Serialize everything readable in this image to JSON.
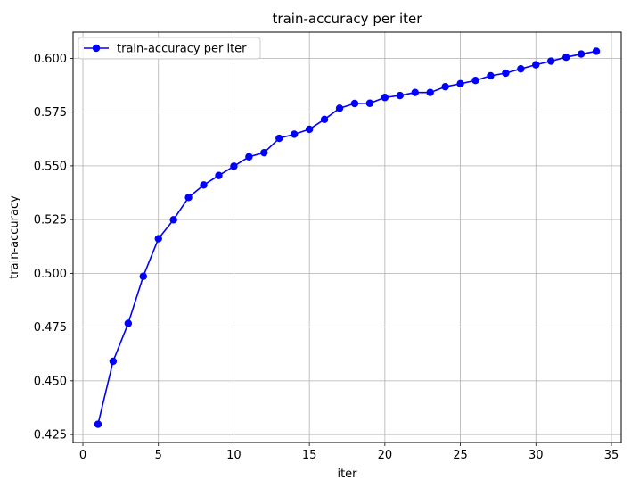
{
  "chart_data": {
    "type": "line",
    "title": "train-accuracy per iter",
    "xlabel": "iter",
    "ylabel": "train-accuracy",
    "xlim": [
      -0.65,
      35.65
    ],
    "ylim": [
      0.4213,
      0.6122
    ],
    "xticks": [
      0,
      5,
      10,
      15,
      20,
      25,
      30,
      35
    ],
    "yticks": [
      0.425,
      0.45,
      0.475,
      0.5,
      0.525,
      0.55,
      0.575,
      0.6
    ],
    "ytick_labels": [
      "0.425",
      "0.450",
      "0.475",
      "0.500",
      "0.525",
      "0.550",
      "0.575",
      "0.600"
    ],
    "grid": true,
    "legend_position": "top-left",
    "series": [
      {
        "name": "train-accuracy per iter",
        "color": "#0000ff",
        "marker": "circle",
        "x": [
          1,
          2,
          3,
          4,
          5,
          6,
          7,
          8,
          9,
          10,
          11,
          12,
          13,
          14,
          15,
          16,
          17,
          18,
          19,
          20,
          21,
          22,
          23,
          24,
          25,
          26,
          27,
          28,
          29,
          30,
          31,
          32,
          33,
          34
        ],
        "y": [
          0.4298,
          0.4591,
          0.4767,
          0.4986,
          0.5161,
          0.5249,
          0.5353,
          0.5411,
          0.5455,
          0.5498,
          0.5542,
          0.5561,
          0.5628,
          0.5647,
          0.567,
          0.5716,
          0.5768,
          0.579,
          0.5791,
          0.5818,
          0.5827,
          0.5841,
          0.5841,
          0.5868,
          0.5882,
          0.5897,
          0.5919,
          0.5931,
          0.5951,
          0.597,
          0.5987,
          0.6005,
          0.602,
          0.6033
        ]
      }
    ]
  }
}
